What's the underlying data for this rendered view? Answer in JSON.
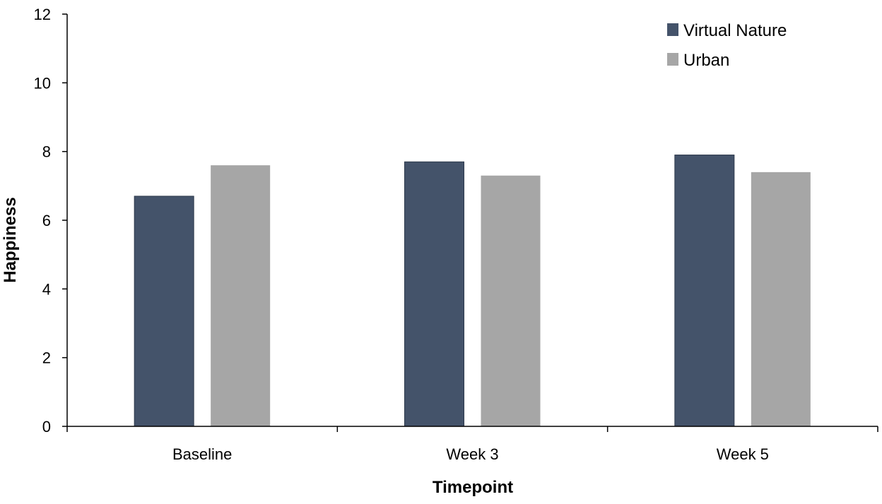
{
  "chart_data": {
    "type": "bar",
    "title": "",
    "xlabel": "Timepoint",
    "ylabel": "Happiness",
    "categories": [
      "Baseline",
      "Week 3",
      "Week 5"
    ],
    "series": [
      {
        "name": "Virtual Nature",
        "values": [
          6.7,
          7.7,
          7.9
        ],
        "color": "#44536a"
      },
      {
        "name": "Urban",
        "values": [
          7.6,
          7.3,
          7.4
        ],
        "color": "#a6a6a6"
      }
    ],
    "ylim": [
      0,
      12
    ],
    "yticks": [
      0,
      2,
      4,
      6,
      8,
      10,
      12
    ],
    "grid": false,
    "legend_position": "top-right"
  }
}
